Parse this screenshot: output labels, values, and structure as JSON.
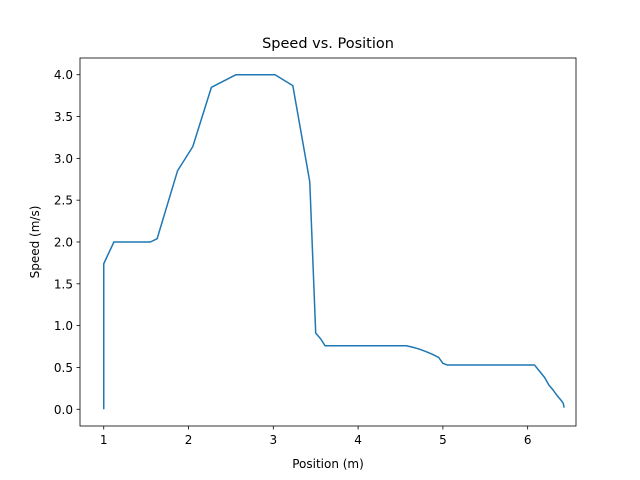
{
  "chart_data": {
    "type": "line",
    "title": "Speed vs. Position",
    "xlabel": "Position (m)",
    "ylabel": "Speed (m/s)",
    "xlim": [
      0.72,
      6.57
    ],
    "ylim": [
      -0.2,
      4.2
    ],
    "xticks": [
      1,
      2,
      3,
      4,
      5,
      6
    ],
    "xtick_labels": [
      "1",
      "2",
      "3",
      "4",
      "5",
      "6"
    ],
    "yticks": [
      0.0,
      0.5,
      1.0,
      1.5,
      2.0,
      2.5,
      3.0,
      3.5,
      4.0
    ],
    "ytick_labels": [
      "0.0",
      "0.5",
      "1.0",
      "1.5",
      "2.0",
      "2.5",
      "3.0",
      "3.5",
      "4.0"
    ],
    "grid": false,
    "legend": "none",
    "series": [
      {
        "color": "#1f77b4",
        "x": [
          1.0,
          1.0,
          1.12,
          1.55,
          1.63,
          1.87,
          2.05,
          2.27,
          2.56,
          3.02,
          3.23,
          3.43,
          3.5,
          3.56,
          3.61,
          3.8,
          4.0,
          4.2,
          4.4,
          4.57,
          4.65,
          4.72,
          4.8,
          4.87,
          4.95,
          5.0,
          5.05,
          5.2,
          5.5,
          5.8,
          6.08,
          6.12,
          6.2,
          6.25,
          6.3,
          6.35,
          6.4,
          6.42,
          6.43
        ],
        "y": [
          0.0,
          1.74,
          2.0,
          2.0,
          2.04,
          2.85,
          3.14,
          3.85,
          4.0,
          4.0,
          3.87,
          2.72,
          0.91,
          0.84,
          0.76,
          0.76,
          0.76,
          0.76,
          0.76,
          0.76,
          0.74,
          0.72,
          0.69,
          0.66,
          0.62,
          0.55,
          0.53,
          0.53,
          0.53,
          0.53,
          0.53,
          0.48,
          0.38,
          0.29,
          0.23,
          0.16,
          0.1,
          0.07,
          0.02
        ]
      }
    ]
  }
}
